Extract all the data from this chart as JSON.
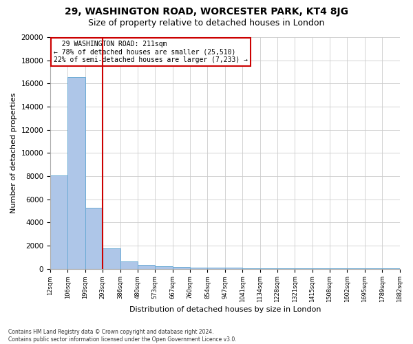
{
  "title1": "29, WASHINGTON ROAD, WORCESTER PARK, KT4 8JG",
  "title2": "Size of property relative to detached houses in London",
  "xlabel": "Distribution of detached houses by size in London",
  "ylabel": "Number of detached properties",
  "annotation_line1": "  29 WASHINGTON ROAD: 211sqm  ",
  "annotation_line2": "← 78% of detached houses are smaller (25,510)",
  "annotation_line3": "22% of semi-detached houses are larger (7,233) →",
  "footer1": "Contains HM Land Registry data © Crown copyright and database right 2024.",
  "footer2": "Contains public sector information licensed under the Open Government Licence v3.0.",
  "bar_heights": [
    8050,
    16550,
    5250,
    1750,
    620,
    350,
    200,
    150,
    120,
    90,
    75,
    60,
    50,
    40,
    35,
    30,
    25,
    20,
    15,
    12
  ],
  "bar_color": "#aec6e8",
  "bar_edgecolor": "#6aaad4",
  "vline_bar_index": 2,
  "vline_color": "#cc0000",
  "ylim": [
    0,
    20000
  ],
  "yticks": [
    0,
    2000,
    4000,
    6000,
    8000,
    10000,
    12000,
    14000,
    16000,
    18000,
    20000
  ],
  "annotation_box_facecolor": "white",
  "annotation_box_edgecolor": "#cc0000",
  "grid_color": "#cccccc",
  "title1_fontsize": 10,
  "title2_fontsize": 9,
  "ylabel_fontsize": 8,
  "xlabel_fontsize": 8,
  "tick_labels": [
    "12sqm",
    "106sqm",
    "199sqm",
    "293sqm",
    "386sqm",
    "480sqm",
    "573sqm",
    "667sqm",
    "760sqm",
    "854sqm",
    "947sqm",
    "1041sqm",
    "1134sqm",
    "1228sqm",
    "1321sqm",
    "1415sqm",
    "1508sqm",
    "1602sqm",
    "1695sqm",
    "1789sqm",
    "1882sqm"
  ]
}
